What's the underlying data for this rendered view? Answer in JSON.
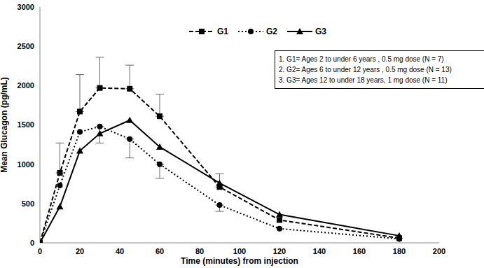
{
  "chart_data": {
    "type": "line",
    "x_label": "Time (minutes) from injection",
    "y_label": "Mean Glucagon (pg/mL)",
    "x": [
      0,
      10,
      20,
      30,
      45,
      60,
      90,
      120,
      180
    ],
    "xlim": [
      0,
      200
    ],
    "xticks": [
      0,
      20,
      40,
      60,
      80,
      100,
      120,
      140,
      160,
      180,
      200
    ],
    "ylim": [
      0,
      3000
    ],
    "yticks": [
      0,
      500,
      1000,
      1500,
      2000,
      2500,
      3000
    ],
    "grid": false,
    "legend": "top",
    "notes": [
      "1. G1= Ages 2 to under 6 years , 0.5 mg dose (N = 7)",
      "2. G2= Ages 6 to under 12 years , 0.5 mg dose (N = 13)",
      "3. G3= Ages 12 to under 18 years, 1 mg dose (N = 11)"
    ],
    "series": [
      {
        "name": "G1",
        "color": "#000000",
        "marker": "square",
        "line_style": "dashed",
        "values": [
          0,
          890,
          1670,
          1970,
          1960,
          1610,
          710,
          290,
          60
        ],
        "errors_upper": [
          null,
          380,
          470,
          390,
          300,
          280,
          170,
          null,
          null
        ]
      },
      {
        "name": "G2",
        "color": "#000000",
        "marker": "circle",
        "line_style": "dotted",
        "values": [
          0,
          730,
          1410,
          1480,
          1320,
          1000,
          480,
          180,
          50
        ],
        "errors_lower": [
          null,
          null,
          null,
          210,
          240,
          180,
          80,
          null,
          null
        ]
      },
      {
        "name": "G3",
        "color": "#000000",
        "marker": "triangle",
        "line_style": "solid",
        "values": [
          0,
          460,
          1170,
          1390,
          1560,
          1220,
          760,
          360,
          90
        ]
      }
    ]
  }
}
